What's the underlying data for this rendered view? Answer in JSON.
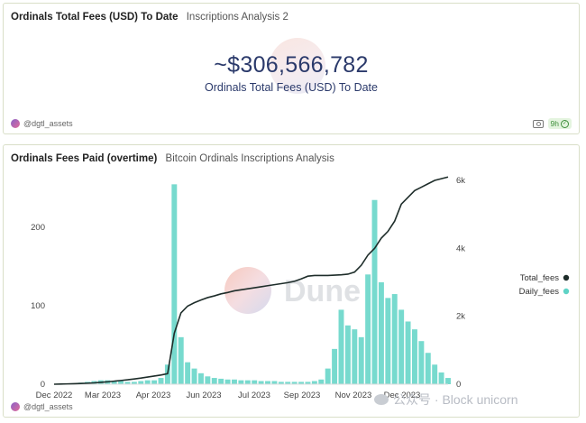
{
  "counter_panel": {
    "title": "Ordinals Total Fees (USD) To Date",
    "subtitle": "Inscriptions Analysis 2",
    "value": "~$306,566,782",
    "label": "Ordinals Total Fees (USD) To Date",
    "author": "@dgtl_assets",
    "badge": "9h"
  },
  "chart_panel": {
    "title": "Ordinals Fees Paid (overtime)",
    "subtitle": "Bitcoin Ordinals Inscriptions Analysis",
    "author": "@dgtl_assets",
    "watermark_text": "Dune"
  },
  "watermark": {
    "text": "公众号 · Block unicorn"
  },
  "colors": {
    "total_fees": "#1e2d2a",
    "daily_fees": "#5fd3c6",
    "accent": "#2b3a6b"
  },
  "chart_data": {
    "type": "line",
    "x_tick_labels": [
      "Dec 2022",
      "Mar 2023",
      "Apr 2023",
      "Jun 2023",
      "Jul 2023",
      "Sep 2023",
      "Nov 2023",
      "Dec 2023"
    ],
    "y_left_ticks": [
      "0",
      "100",
      "200"
    ],
    "y_right_ticks": [
      "0",
      "2k",
      "4k",
      "6k"
    ],
    "y_left_range": [
      0,
      260
    ],
    "y_right_range": [
      0,
      6000
    ],
    "legend_position": "right",
    "grid": false,
    "series": [
      {
        "name": "Total_fees",
        "axis": "right",
        "style": "line",
        "values": [
          0,
          5,
          10,
          15,
          22,
          30,
          40,
          55,
          70,
          90,
          110,
          130,
          155,
          180,
          210,
          240,
          270,
          310,
          1500,
          2100,
          2300,
          2400,
          2480,
          2550,
          2600,
          2660,
          2700,
          2750,
          2780,
          2810,
          2840,
          2870,
          2900,
          2930,
          2960,
          2990,
          3030,
          3100,
          3180,
          3200,
          3200,
          3200,
          3210,
          3220,
          3240,
          3300,
          3500,
          3800,
          4000,
          4300,
          4500,
          4800,
          5300,
          5500,
          5700,
          5800,
          5900,
          6000,
          6050,
          6100
        ]
      },
      {
        "name": "Daily_fees",
        "axis": "left",
        "style": "bars",
        "values": [
          0,
          0.5,
          1,
          1,
          2,
          3,
          4,
          5,
          5,
          4,
          4,
          3,
          3,
          4,
          5,
          5,
          8,
          25,
          255,
          60,
          28,
          20,
          14,
          10,
          8,
          7,
          6,
          6,
          5,
          5,
          5,
          4,
          4,
          4,
          3,
          3,
          3,
          3,
          3,
          4,
          6,
          20,
          45,
          95,
          75,
          70,
          60,
          140,
          235,
          130,
          110,
          115,
          95,
          80,
          70,
          55,
          40,
          25,
          15,
          8
        ]
      }
    ]
  }
}
